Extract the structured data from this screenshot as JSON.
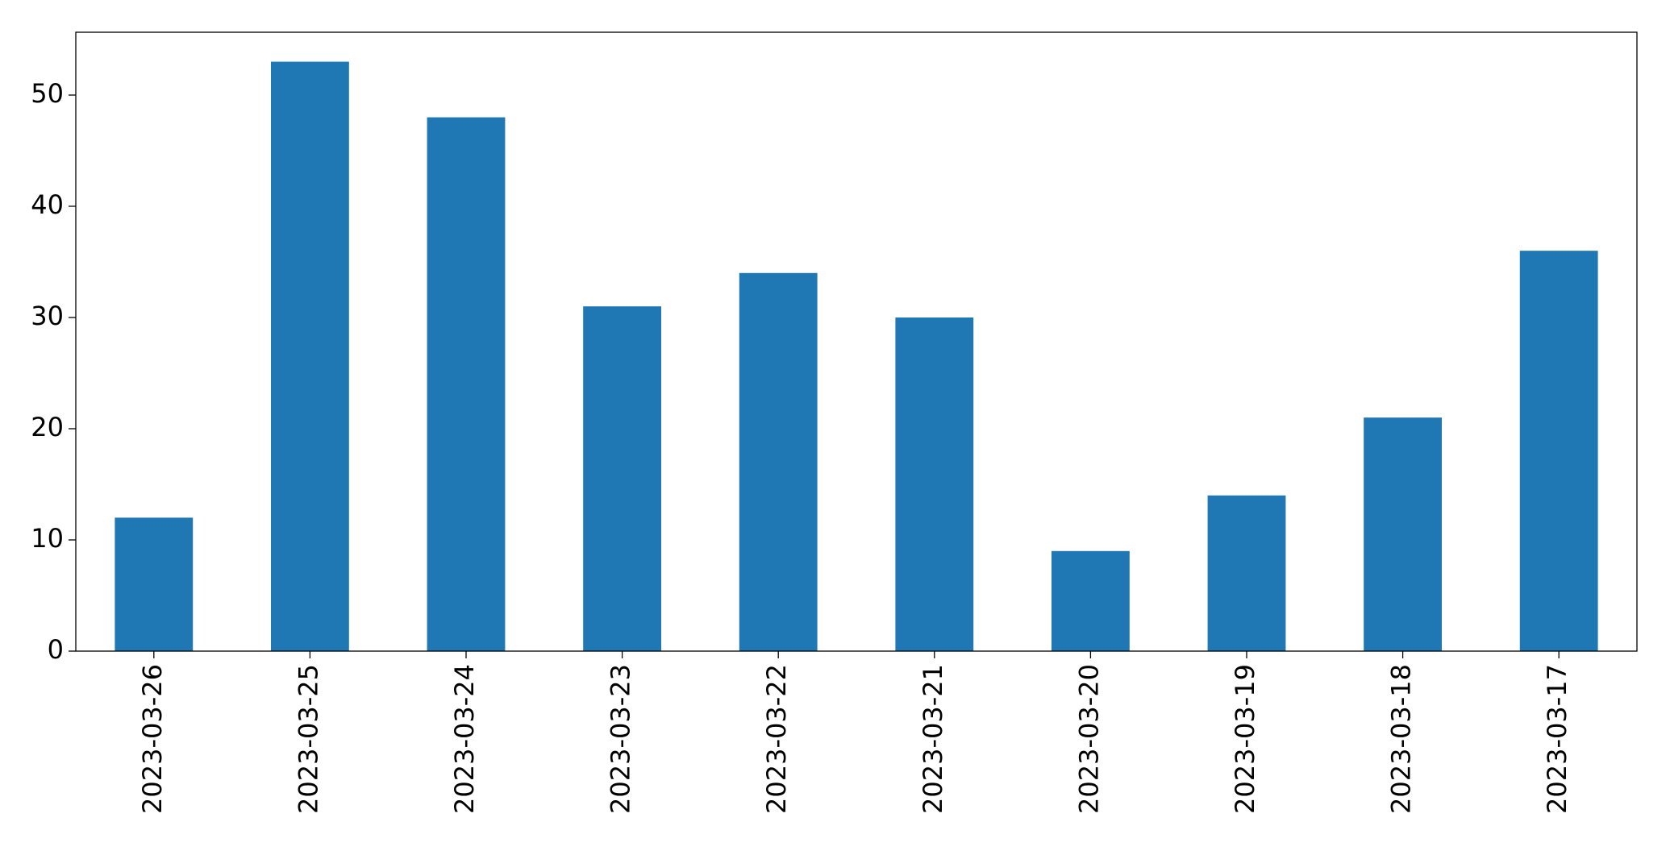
{
  "chart_data": {
    "type": "bar",
    "categories": [
      "2023-03-26",
      "2023-03-25",
      "2023-03-24",
      "2023-03-23",
      "2023-03-22",
      "2023-03-21",
      "2023-03-20",
      "2023-03-19",
      "2023-03-18",
      "2023-03-17"
    ],
    "values": [
      12,
      53,
      48,
      31,
      34,
      30,
      9,
      14,
      21,
      36
    ],
    "color": "#1f77b4",
    "ylim": [
      0,
      55.65
    ],
    "yticks": [
      0,
      10,
      20,
      30,
      40,
      50
    ],
    "grid": false
  }
}
